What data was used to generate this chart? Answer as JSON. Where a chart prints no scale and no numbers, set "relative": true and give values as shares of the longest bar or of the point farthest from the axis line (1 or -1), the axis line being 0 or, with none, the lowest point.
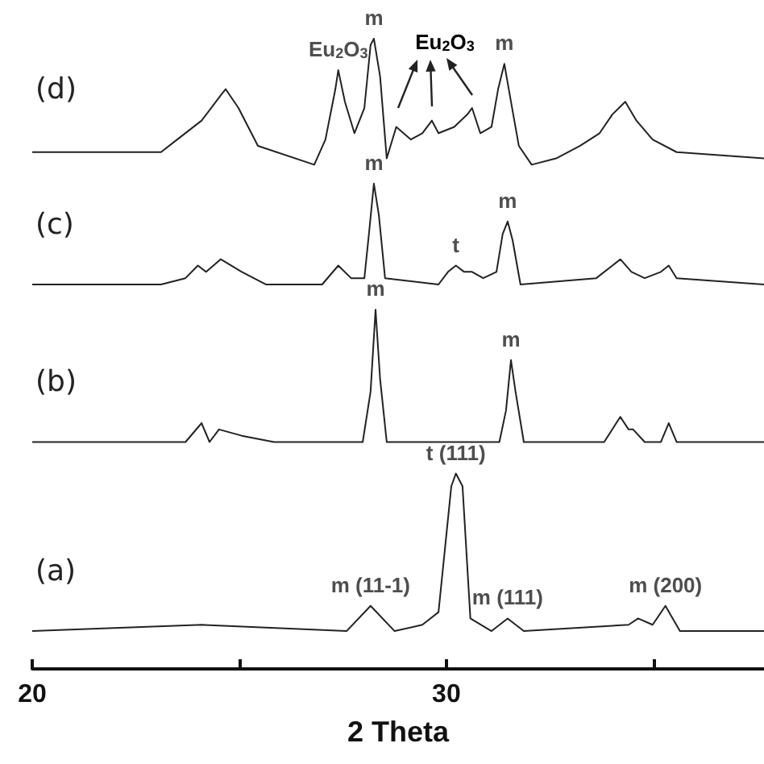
{
  "chart_data": {
    "type": "line",
    "xlabel": "2 Theta",
    "relative": true,
    "xlim": [
      20,
      37.67
    ],
    "xticks": [
      20,
      {
        "value": 25,
        "label": null
      },
      30,
      {
        "value": 35,
        "label": null
      }
    ],
    "grid": false,
    "marker": "none",
    "line_style": "solid",
    "series": [
      {
        "name": "(a)",
        "color": "#222222",
        "x": [
          20,
          24.09,
          27.59,
          28.17,
          28.75,
          29.42,
          29.81,
          30.12,
          30.23,
          30.39,
          30.58,
          31.09,
          31.48,
          31.87,
          34.4,
          34.63,
          34.98,
          35.29,
          35.64,
          37.67
        ],
        "values": [
          0.06,
          0.07,
          0.06,
          0.1,
          0.06,
          0.07,
          0.09,
          0.29,
          0.31,
          0.29,
          0.08,
          0.06,
          0.08,
          0.06,
          0.07,
          0.08,
          0.07,
          0.1,
          0.06,
          0.06
        ]
      },
      {
        "name": "(b)",
        "color": "#222222",
        "x": [
          20,
          23.7,
          24.09,
          24.28,
          24.51,
          25.06,
          25.84,
          27.98,
          28.17,
          28.29,
          28.4,
          28.56,
          31.28,
          31.44,
          31.56,
          31.67,
          31.87,
          33.81,
          34.2,
          34.4,
          34.51,
          34.79,
          35.18,
          35.37,
          35.56,
          37.67
        ],
        "values": [
          0.36,
          0.36,
          0.39,
          0.36,
          0.38,
          0.37,
          0.36,
          0.36,
          0.44,
          0.57,
          0.46,
          0.36,
          0.36,
          0.41,
          0.49,
          0.44,
          0.36,
          0.36,
          0.4,
          0.38,
          0.38,
          0.36,
          0.36,
          0.39,
          0.36,
          0.36
        ]
      },
      {
        "name": "(c)",
        "color": "#222222",
        "x": [
          20,
          23.11,
          23.7,
          24.0,
          24.2,
          24.55,
          25.06,
          25.64,
          27.0,
          27.39,
          27.7,
          28.02,
          28.13,
          28.25,
          28.37,
          28.52,
          29.81,
          30.04,
          30.23,
          30.43,
          30.62,
          30.89,
          31.21,
          31.36,
          31.48,
          31.6,
          31.79,
          33.62,
          34.01,
          34.2,
          34.47,
          34.79,
          35.18,
          35.37,
          35.56,
          37.67
        ],
        "values": [
          0.61,
          0.61,
          0.62,
          0.64,
          0.63,
          0.65,
          0.63,
          0.61,
          0.61,
          0.64,
          0.62,
          0.62,
          0.69,
          0.77,
          0.72,
          0.62,
          0.61,
          0.63,
          0.64,
          0.63,
          0.63,
          0.62,
          0.63,
          0.69,
          0.71,
          0.68,
          0.61,
          0.62,
          0.64,
          0.65,
          0.63,
          0.62,
          0.63,
          0.64,
          0.62,
          0.61
        ]
      },
      {
        "name": "(d)",
        "color": "#222222",
        "x": [
          20,
          23.11,
          23.5,
          24.09,
          24.55,
          24.67,
          24.98,
          25.45,
          26.81,
          27.08,
          27.32,
          27.39,
          27.55,
          27.78,
          28.02,
          28.17,
          28.25,
          28.4,
          28.56,
          28.79,
          29.14,
          29.42,
          29.65,
          29.81,
          30.19,
          30.51,
          30.62,
          30.82,
          31.09,
          31.25,
          31.4,
          31.56,
          31.75,
          32.06,
          32.65,
          33.23,
          33.7,
          34.01,
          34.32,
          34.59,
          34.98,
          35.56,
          37.67
        ],
        "values": [
          0.82,
          0.82,
          0.84,
          0.87,
          0.91,
          0.92,
          0.89,
          0.83,
          0.8,
          0.84,
          0.92,
          0.95,
          0.9,
          0.85,
          0.89,
          0.99,
          1.0,
          0.94,
          0.81,
          0.86,
          0.84,
          0.85,
          0.87,
          0.85,
          0.86,
          0.88,
          0.89,
          0.85,
          0.86,
          0.92,
          0.96,
          0.9,
          0.83,
          0.8,
          0.81,
          0.83,
          0.85,
          0.88,
          0.9,
          0.87,
          0.84,
          0.82,
          0.81
        ]
      }
    ],
    "annotations": [
      {
        "text": "m (11-1)",
        "x": 28.17,
        "y": 0.1
      },
      {
        "text": "t (111)",
        "x": 30.23,
        "y": 0.31
      },
      {
        "text": "m (111)",
        "x": 31.48,
        "y": 0.08
      },
      {
        "text": "m (200)",
        "x": 35.29,
        "y": 0.1
      },
      {
        "text": "m",
        "x": 28.29,
        "y": 0.57
      },
      {
        "text": "m",
        "x": 31.56,
        "y": 0.49
      },
      {
        "text": "m",
        "x": 28.25,
        "y": 0.77
      },
      {
        "text": "t",
        "x": 30.23,
        "y": 0.64
      },
      {
        "text": "m",
        "x": 31.48,
        "y": 0.71
      },
      {
        "text": "Eu$_{2}$O$_{3}$",
        "x": 27.39,
        "y": 0.95
      },
      {
        "text": "m",
        "x": 28.25,
        "y": 1.0
      },
      "Eu$_{2}$O$_{3}$",
      {
        "text": "m",
        "x": 31.4,
        "y": 0.96
      }
    ]
  }
}
